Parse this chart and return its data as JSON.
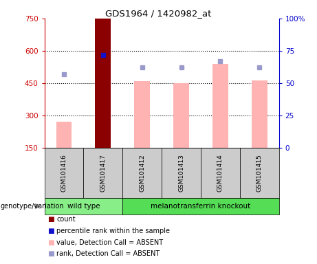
{
  "title": "GDS1964 / 1420982_at",
  "samples": [
    "GSM101416",
    "GSM101417",
    "GSM101412",
    "GSM101413",
    "GSM101414",
    "GSM101415"
  ],
  "wild_type_count": 2,
  "knockout_count": 4,
  "ylim_left": [
    150,
    750
  ],
  "ylim_right": [
    0,
    100
  ],
  "yticks_left": [
    150,
    300,
    450,
    600,
    750
  ],
  "yticks_right": [
    0,
    25,
    50,
    75,
    100
  ],
  "ytick_right_labels": [
    "0",
    "25",
    "50",
    "75",
    "100%"
  ],
  "pink_bar_values": [
    270,
    750,
    458,
    450,
    538,
    463
  ],
  "blue_square_values": [
    57,
    72,
    62,
    62,
    67,
    62
  ],
  "has_red_bar": [
    false,
    true,
    false,
    false,
    false,
    false
  ],
  "red_bar_color": "#8B0000",
  "pink_bar_color": "#FFB3B3",
  "blue_square_color": "#9999CC",
  "dark_blue_square_color": "#1111CC",
  "grid_dotted_at": [
    300,
    450,
    600
  ],
  "left_axis_color": "#CC0000",
  "right_axis_color": "#0000CC",
  "gray_cell_color": "#CCCCCC",
  "wt_bg_color": "#88EE88",
  "ko_bg_color": "#55DD55",
  "genotype_label": "genotype/variation",
  "wt_label": "wild type",
  "ko_label": "melanotransferrin knockout",
  "legend_items": [
    {
      "color": "#8B0000",
      "label": "count"
    },
    {
      "color": "#1111CC",
      "label": "percentile rank within the sample"
    },
    {
      "color": "#FFB3B3",
      "label": "value, Detection Call = ABSENT"
    },
    {
      "color": "#9999CC",
      "label": "rank, Detection Call = ABSENT"
    }
  ],
  "fig_width": 4.61,
  "fig_height": 3.84,
  "dpi": 100
}
